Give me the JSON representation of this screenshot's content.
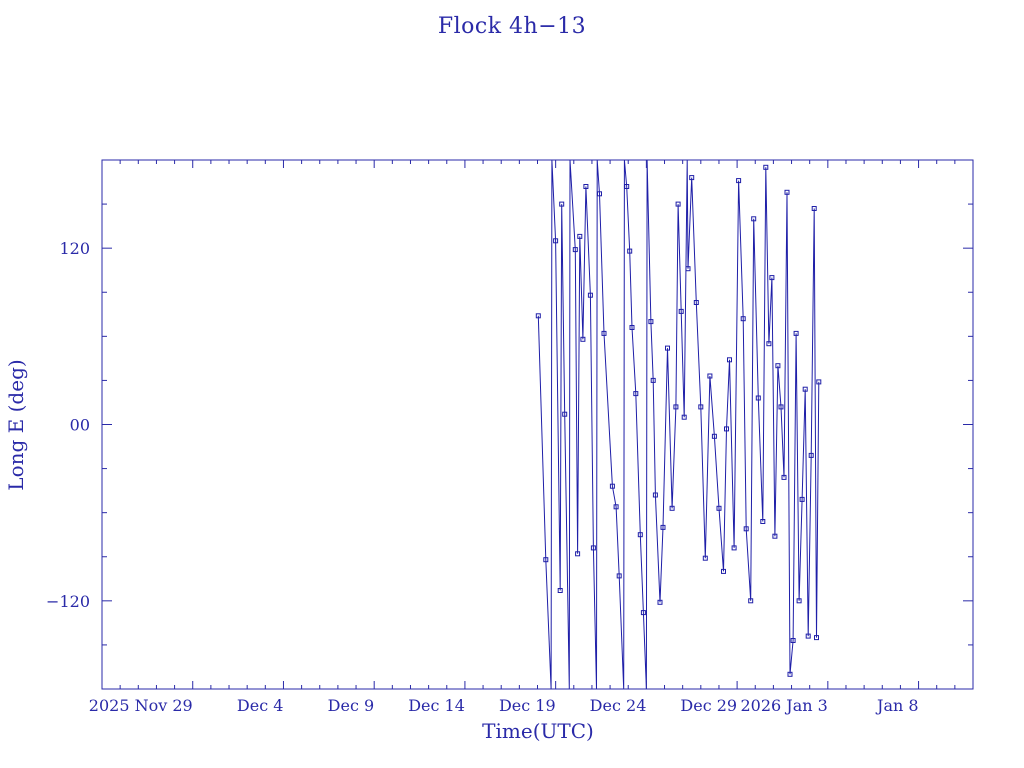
{
  "chart_data": {
    "type": "scatter",
    "title": "Flock 4h−13",
    "xlabel": "Time(UTC)",
    "ylabel": "Long E (deg)",
    "x_ticks": [
      "2025 Nov 29",
      "Dec 4",
      "Dec 9",
      "Dec 14",
      "Dec 19",
      "Dec 24",
      "Dec 29",
      "2026 Jan 3",
      "Jan 8"
    ],
    "y_ticks": [
      "−120",
      "00",
      "120"
    ],
    "xlim": [
      "2025-11-24",
      "2026-01-11"
    ],
    "ylim": [
      -180,
      180
    ],
    "grid": false,
    "line_color": "#1f1fa8",
    "series": [
      {
        "points": [
          [
            "2025-12-18 01:00",
            74
          ],
          [
            "2025-12-18 11:00",
            -92
          ],
          [
            "2025-12-18 18:00",
            -180
          ],
          [
            "2025-12-18 19:00",
            180
          ],
          [
            "2025-12-19 00:00",
            125
          ],
          [
            "2025-12-19 06:00",
            -113
          ],
          [
            "2025-12-19 08:00",
            150
          ],
          [
            "2025-12-19 12:00",
            7
          ],
          [
            "2025-12-19 18:00",
            -180
          ],
          [
            "2025-12-19 19:00",
            180
          ],
          [
            "2025-12-20 02:00",
            119
          ],
          [
            "2025-12-20 05:00",
            -88
          ],
          [
            "2025-12-20 08:00",
            128
          ],
          [
            "2025-12-20 12:00",
            58
          ],
          [
            "2025-12-20 16:00",
            162
          ],
          [
            "2025-12-20 22:00",
            88
          ],
          [
            "2025-12-21 02:00",
            -84
          ],
          [
            "2025-12-21 06:00",
            -180
          ],
          [
            "2025-12-21 07:00",
            180
          ],
          [
            "2025-12-21 10:00",
            157
          ],
          [
            "2025-12-21 16:00",
            62
          ],
          [
            "2025-12-22 03:00",
            -42
          ],
          [
            "2025-12-22 08:00",
            -56
          ],
          [
            "2025-12-22 12:00",
            -103
          ],
          [
            "2025-12-22 18:00",
            -180
          ],
          [
            "2025-12-22 19:00",
            180
          ],
          [
            "2025-12-22 22:00",
            162
          ],
          [
            "2025-12-23 02:00",
            118
          ],
          [
            "2025-12-23 05:00",
            66
          ],
          [
            "2025-12-23 10:00",
            21
          ],
          [
            "2025-12-23 16:00",
            -75
          ],
          [
            "2025-12-23 20:00",
            -128
          ],
          [
            "2025-12-24 00:00",
            -180
          ],
          [
            "2025-12-24 01:00",
            180
          ],
          [
            "2025-12-24 06:00",
            70
          ],
          [
            "2025-12-24 09:00",
            30
          ],
          [
            "2025-12-24 12:00",
            -48
          ],
          [
            "2025-12-24 18:00",
            -121
          ],
          [
            "2025-12-24 22:00",
            -70
          ],
          [
            "2025-12-25 04:00",
            52
          ],
          [
            "2025-12-25 10:00",
            -57
          ],
          [
            "2025-12-25 15:00",
            12
          ],
          [
            "2025-12-25 18:00",
            150
          ],
          [
            "2025-12-25 22:00",
            77
          ],
          [
            "2025-12-26 02:00",
            5
          ],
          [
            "2025-12-26 06:00",
            180
          ],
          [
            "2025-12-26 07:00",
            106
          ],
          [
            "2025-12-26 12:00",
            168
          ],
          [
            "2025-12-26 18:00",
            83
          ],
          [
            "2025-12-27 00:00",
            12
          ],
          [
            "2025-12-27 06:00",
            -91
          ],
          [
            "2025-12-27 12:00",
            33
          ],
          [
            "2025-12-27 18:00",
            -8
          ],
          [
            "2025-12-28 00:00",
            -57
          ],
          [
            "2025-12-28 06:00",
            -100
          ],
          [
            "2025-12-28 10:00",
            -3
          ],
          [
            "2025-12-28 14:00",
            44
          ],
          [
            "2025-12-28 20:00",
            -84
          ],
          [
            "2025-12-29 02:00",
            166
          ],
          [
            "2025-12-29 08:00",
            72
          ],
          [
            "2025-12-29 12:00",
            -71
          ],
          [
            "2025-12-29 18:00",
            -120
          ],
          [
            "2025-12-29 22:00",
            140
          ],
          [
            "2025-12-30 04:00",
            18
          ],
          [
            "2025-12-30 10:00",
            -66
          ],
          [
            "2025-12-30 14:00",
            175
          ],
          [
            "2025-12-30 18:00",
            55
          ],
          [
            "2025-12-30 22:00",
            100
          ],
          [
            "2025-12-31 02:00",
            -76
          ],
          [
            "2025-12-31 06:00",
            40
          ],
          [
            "2025-12-31 10:00",
            12
          ],
          [
            "2025-12-31 14:00",
            -36
          ],
          [
            "2025-12-31 18:00",
            158
          ],
          [
            "2025-12-31 22:00",
            -170
          ],
          [
            "2026-01-01 02:00",
            -147
          ],
          [
            "2026-01-01 06:00",
            62
          ],
          [
            "2026-01-01 10:00",
            -120
          ],
          [
            "2026-01-01 14:00",
            -51
          ],
          [
            "2026-01-01 18:00",
            24
          ],
          [
            "2026-01-01 22:00",
            -144
          ],
          [
            "2026-01-02 02:00",
            -21
          ],
          [
            "2026-01-02 06:00",
            147
          ],
          [
            "2026-01-02 09:00",
            -145
          ],
          [
            "2026-01-02 12:00",
            29
          ]
        ]
      }
    ]
  }
}
